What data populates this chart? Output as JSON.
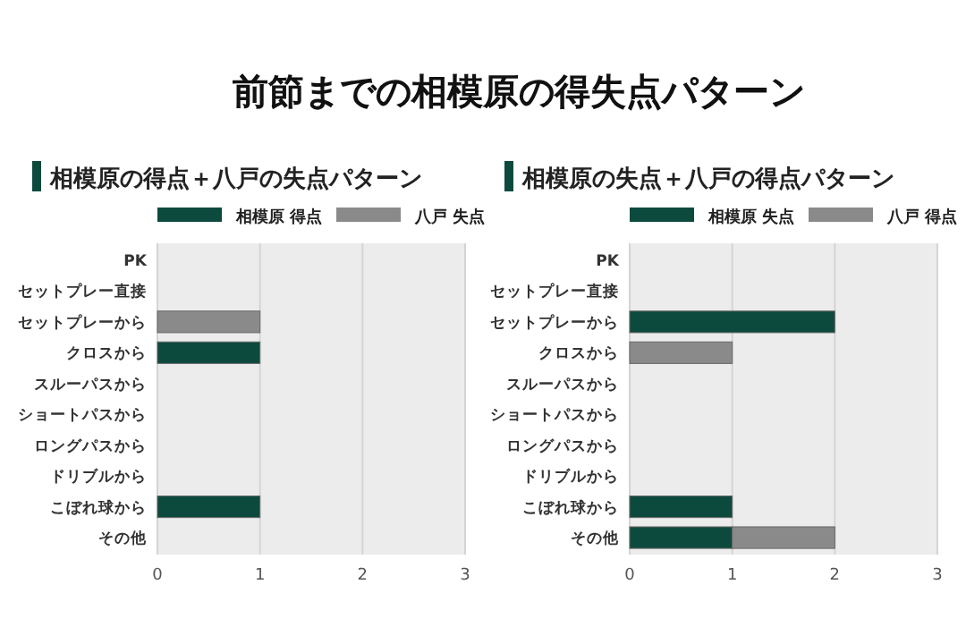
{
  "chart_data": [
    {
      "type": "other",
      "title": "前節までの相模原の得失点パターン"
    },
    {
      "type": "bar",
      "orientation": "horizontal",
      "stacked": true,
      "title": "相模原の得点＋八戸の失点パターン",
      "categories": [
        "PK",
        "セットプレー直接",
        "セットプレーから",
        "クロスから",
        "スルーパスから",
        "ショートパスから",
        "ロングパスから",
        "ドリブルから",
        "こぼれ球から",
        "その他"
      ],
      "series": [
        {
          "name": "相模原 得点",
          "color": "#0d4a3e",
          "values": [
            0,
            0,
            0,
            1,
            0,
            0,
            0,
            0,
            1,
            0
          ]
        },
        {
          "name": "八戸 失点",
          "color": "#8a8a8a",
          "values": [
            0,
            0,
            1,
            0,
            0,
            0,
            0,
            0,
            0,
            0
          ]
        }
      ],
      "xlim": [
        0,
        3
      ],
      "xticks": [
        0,
        1,
        2,
        3
      ],
      "grid": "x",
      "legend": "top"
    },
    {
      "type": "bar",
      "orientation": "horizontal",
      "stacked": true,
      "title": "相模原の失点＋八戸の得点パターン",
      "categories": [
        "PK",
        "セットプレー直接",
        "セットプレーから",
        "クロスから",
        "スルーパスから",
        "ショートパスから",
        "ロングパスから",
        "ドリブルから",
        "こぼれ球から",
        "その他"
      ],
      "series": [
        {
          "name": "相模原 失点",
          "color": "#0d4a3e",
          "values": [
            0,
            0,
            2,
            0,
            0,
            0,
            0,
            0,
            1,
            1
          ]
        },
        {
          "name": "八戸 得点",
          "color": "#8a8a8a",
          "values": [
            0,
            0,
            0,
            1,
            0,
            0,
            0,
            0,
            0,
            1
          ]
        }
      ],
      "xlim": [
        0,
        3
      ],
      "xticks": [
        0,
        1,
        2,
        3
      ],
      "grid": "x",
      "legend": "top"
    }
  ]
}
